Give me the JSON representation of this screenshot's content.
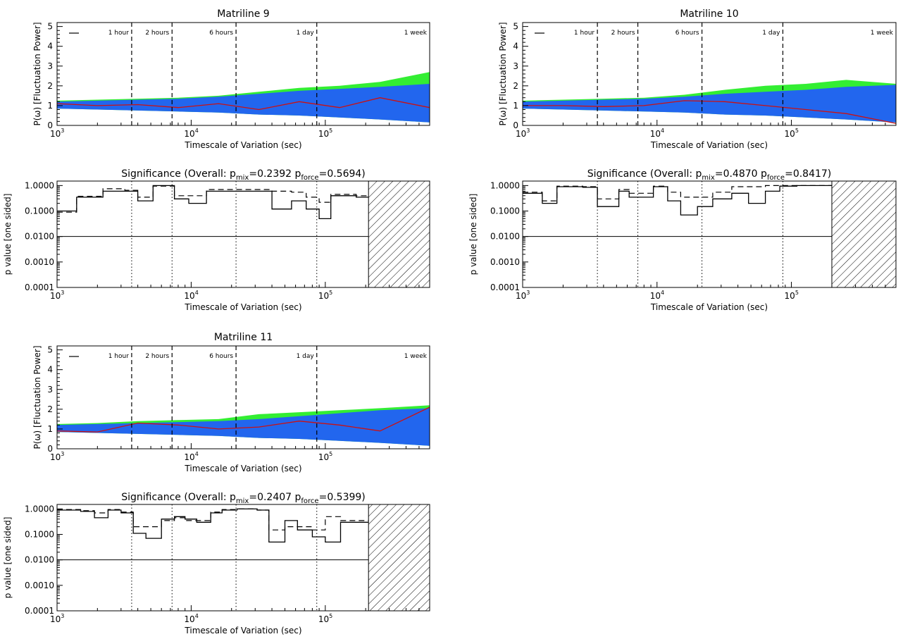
{
  "figure": {
    "common": {
      "xlabel": "Timescale of Variation (sec)",
      "x_ticks": [
        "10",
        "10",
        "10"
      ],
      "x_tick_exps": [
        "3",
        "4",
        "5"
      ],
      "x_tick_values": [
        1000,
        10000,
        100000
      ],
      "xlim": [
        1000,
        600000
      ],
      "xscale": "log",
      "power_ylabel": "P(ω) [Fluctuation Power]",
      "power_yticks": [
        "0",
        "1",
        "2",
        "3",
        "4",
        "5"
      ],
      "sig_ylabel": "p value [one sided]",
      "sig_yticks": [
        "0.0001",
        "0.0010",
        "0.0100",
        "0.1000",
        "1.0000"
      ],
      "sig_prefix": "Significance (Overall: p",
      "sig_mix_sub": "mix",
      "sig_force_sub": "force",
      "time_markers": [
        {
          "label": "1 hour",
          "value": 3600
        },
        {
          "label": "2 hours",
          "value": 7200
        },
        {
          "label": "6 hours",
          "value": 21600
        },
        {
          "label": "1 day",
          "value": 86400
        },
        {
          "label": "1 week",
          "value": 604800
        }
      ],
      "colors": {
        "mix_band": "#2266ee",
        "force_band": "#33ee33",
        "observed": "#cc1111",
        "axes": "#000000"
      }
    },
    "panels": [
      {
        "title": "Matriline 9",
        "p_mix": "0.2392",
        "p_force": "0.5694",
        "significance_threshold": 0.01,
        "hatched_from": 210000
      },
      {
        "title": "Matriline 10",
        "p_mix": "0.4870",
        "p_force": "0.8417",
        "significance_threshold": 0.01,
        "hatched_from": 200000
      },
      {
        "title": "Matriline 11",
        "p_mix": "0.2407",
        "p_force": "0.5399",
        "significance_threshold": 0.01,
        "hatched_from": 210000
      }
    ]
  },
  "chart_data": [
    {
      "type": "area",
      "title": "Matriline 9",
      "xlabel": "Timescale of Variation (sec)",
      "ylabel": "P(ω) [Fluctuation Power]",
      "xscale": "log",
      "xlim": [
        1000,
        600000
      ],
      "ylim": [
        0,
        5
      ],
      "x": [
        1000,
        2000,
        4000,
        8000,
        16000,
        32000,
        64000,
        128000,
        256000,
        600000
      ],
      "series": [
        {
          "name": "",
          "values": [
            1.1,
            1.0,
            1.05,
            0.9,
            1.1,
            0.8,
            1.2,
            0.9,
            1.4,
            0.9
          ]
        },
        {
          "values": [
            1.2,
            1.25,
            1.3,
            1.35,
            1.45,
            1.6,
            1.75,
            1.85,
            1.95,
            2.1
          ]
        },
        {
          "values": [
            0.85,
            0.8,
            0.75,
            0.7,
            0.65,
            0.55,
            0.5,
            0.4,
            0.3,
            0.15
          ]
        },
        {
          "values": [
            1.25,
            1.3,
            1.35,
            1.4,
            1.5,
            1.7,
            1.9,
            2.0,
            2.2,
            2.7
          ]
        }
      ]
    },
    {
      "type": "line",
      "title": "Significance (Overall: p_mix=0.2392 p_force=0.5694)",
      "ylabel": "p value [one sided]",
      "xscale": "log",
      "yscale": "log",
      "ylim": [
        0.0001,
        1.5
      ],
      "x_edges": [
        1000,
        1400,
        2200,
        3200,
        4000,
        5200,
        7500,
        9600,
        13000,
        26000,
        40000,
        56000,
        72000,
        90000,
        110000,
        170000,
        210000
      ],
      "series": [
        {
          "name": "",
          "values": [
            0.1,
            0.35,
            0.6,
            0.6,
            0.25,
            1.0,
            0.3,
            0.2,
            0.6,
            0.6,
            0.12,
            0.25,
            0.12,
            0.05,
            0.4,
            0.35
          ]
        },
        {
          "values": [
            0.09,
            0.38,
            0.75,
            0.65,
            0.35,
            0.95,
            0.4,
            0.4,
            0.7,
            0.7,
            0.6,
            0.55,
            0.35,
            0.22,
            0.45,
            0.4
          ]
        }
      ]
    },
    {
      "type": "area",
      "title": "Matriline 10",
      "xlabel": "Timescale of Variation (sec)",
      "ylabel": "P(ω) [Fluctuation Power]",
      "xscale": "log",
      "xlim": [
        1000,
        600000
      ],
      "ylim": [
        0,
        5
      ],
      "x": [
        1000,
        2000,
        4000,
        8000,
        16000,
        32000,
        64000,
        128000,
        256000,
        600000
      ],
      "series": [
        {
          "values": [
            1.0,
            1.0,
            0.95,
            1.0,
            1.25,
            1.2,
            1.0,
            0.8,
            0.6,
            0.1
          ]
        },
        {
          "values": [
            1.2,
            1.25,
            1.3,
            1.35,
            1.45,
            1.6,
            1.7,
            1.8,
            1.95,
            2.05
          ]
        },
        {
          "values": [
            0.85,
            0.8,
            0.75,
            0.7,
            0.65,
            0.55,
            0.5,
            0.4,
            0.3,
            0.15
          ]
        },
        {
          "values": [
            1.25,
            1.3,
            1.35,
            1.4,
            1.55,
            1.8,
            2.0,
            2.1,
            2.3,
            2.1
          ]
        }
      ]
    },
    {
      "type": "line",
      "title": "Significance (Overall: p_mix=0.4870 p_force=0.8417)",
      "ylabel": "p value [one sided]",
      "xscale": "log",
      "yscale": "log",
      "ylim": [
        0.0001,
        1.5
      ],
      "x_edges": [
        1000,
        1400,
        1800,
        2800,
        3600,
        5200,
        6200,
        9400,
        12000,
        15000,
        20000,
        26000,
        36000,
        48000,
        64000,
        82000,
        110000,
        200000
      ],
      "series": [
        {
          "values": [
            0.5,
            0.2,
            0.9,
            0.85,
            0.15,
            0.6,
            0.35,
            0.9,
            0.25,
            0.07,
            0.15,
            0.3,
            0.5,
            0.2,
            0.6,
            0.95,
            1.0
          ]
        },
        {
          "values": [
            0.55,
            0.25,
            0.95,
            0.9,
            0.3,
            0.7,
            0.5,
            0.95,
            0.55,
            0.35,
            0.35,
            0.55,
            0.9,
            0.9,
            1.0,
            1.0,
            1.0
          ]
        }
      ]
    },
    {
      "type": "area",
      "title": "Matriline 11",
      "xlabel": "Timescale of Variation (sec)",
      "ylabel": "P(ω) [Fluctuation Power]",
      "xscale": "log",
      "xlim": [
        1000,
        600000
      ],
      "ylim": [
        0,
        5
      ],
      "x": [
        1000,
        2000,
        4000,
        8000,
        16000,
        32000,
        64000,
        128000,
        256000,
        600000
      ],
      "series": [
        {
          "values": [
            0.9,
            0.85,
            1.3,
            1.2,
            1.0,
            1.1,
            1.4,
            1.2,
            0.9,
            2.1
          ]
        },
        {
          "values": [
            1.2,
            1.25,
            1.3,
            1.35,
            1.4,
            1.5,
            1.65,
            1.8,
            1.95,
            2.05
          ]
        },
        {
          "values": [
            0.85,
            0.8,
            0.75,
            0.7,
            0.65,
            0.55,
            0.5,
            0.4,
            0.3,
            0.15
          ]
        },
        {
          "values": [
            1.25,
            1.3,
            1.4,
            1.45,
            1.5,
            1.75,
            1.85,
            1.95,
            2.05,
            2.2
          ]
        }
      ]
    },
    {
      "type": "line",
      "title": "Significance (Overall: p_mix=0.2407 p_force=0.5399)",
      "ylabel": "p value [one sided]",
      "xscale": "log",
      "yscale": "log",
      "ylim": [
        0.0001,
        1.5
      ],
      "x_edges": [
        1000,
        1500,
        1900,
        2400,
        3000,
        3700,
        4600,
        6000,
        7500,
        9000,
        11000,
        14000,
        17000,
        22000,
        31000,
        38000,
        50000,
        62000,
        80000,
        100000,
        130000,
        170000,
        210000
      ],
      "series": [
        {
          "values": [
            0.9,
            0.8,
            0.45,
            0.9,
            0.7,
            0.11,
            0.07,
            0.4,
            0.5,
            0.4,
            0.3,
            0.7,
            0.9,
            1.0,
            0.9,
            0.05,
            0.35,
            0.15,
            0.08,
            0.05,
            0.3,
            0.3
          ]
        },
        {
          "values": [
            0.95,
            0.85,
            0.7,
            0.95,
            0.75,
            0.2,
            0.2,
            0.35,
            0.45,
            0.35,
            0.35,
            0.75,
            0.95,
            1.0,
            0.9,
            0.15,
            0.2,
            0.2,
            0.15,
            0.5,
            0.35,
            0.35
          ]
        }
      ]
    }
  ]
}
